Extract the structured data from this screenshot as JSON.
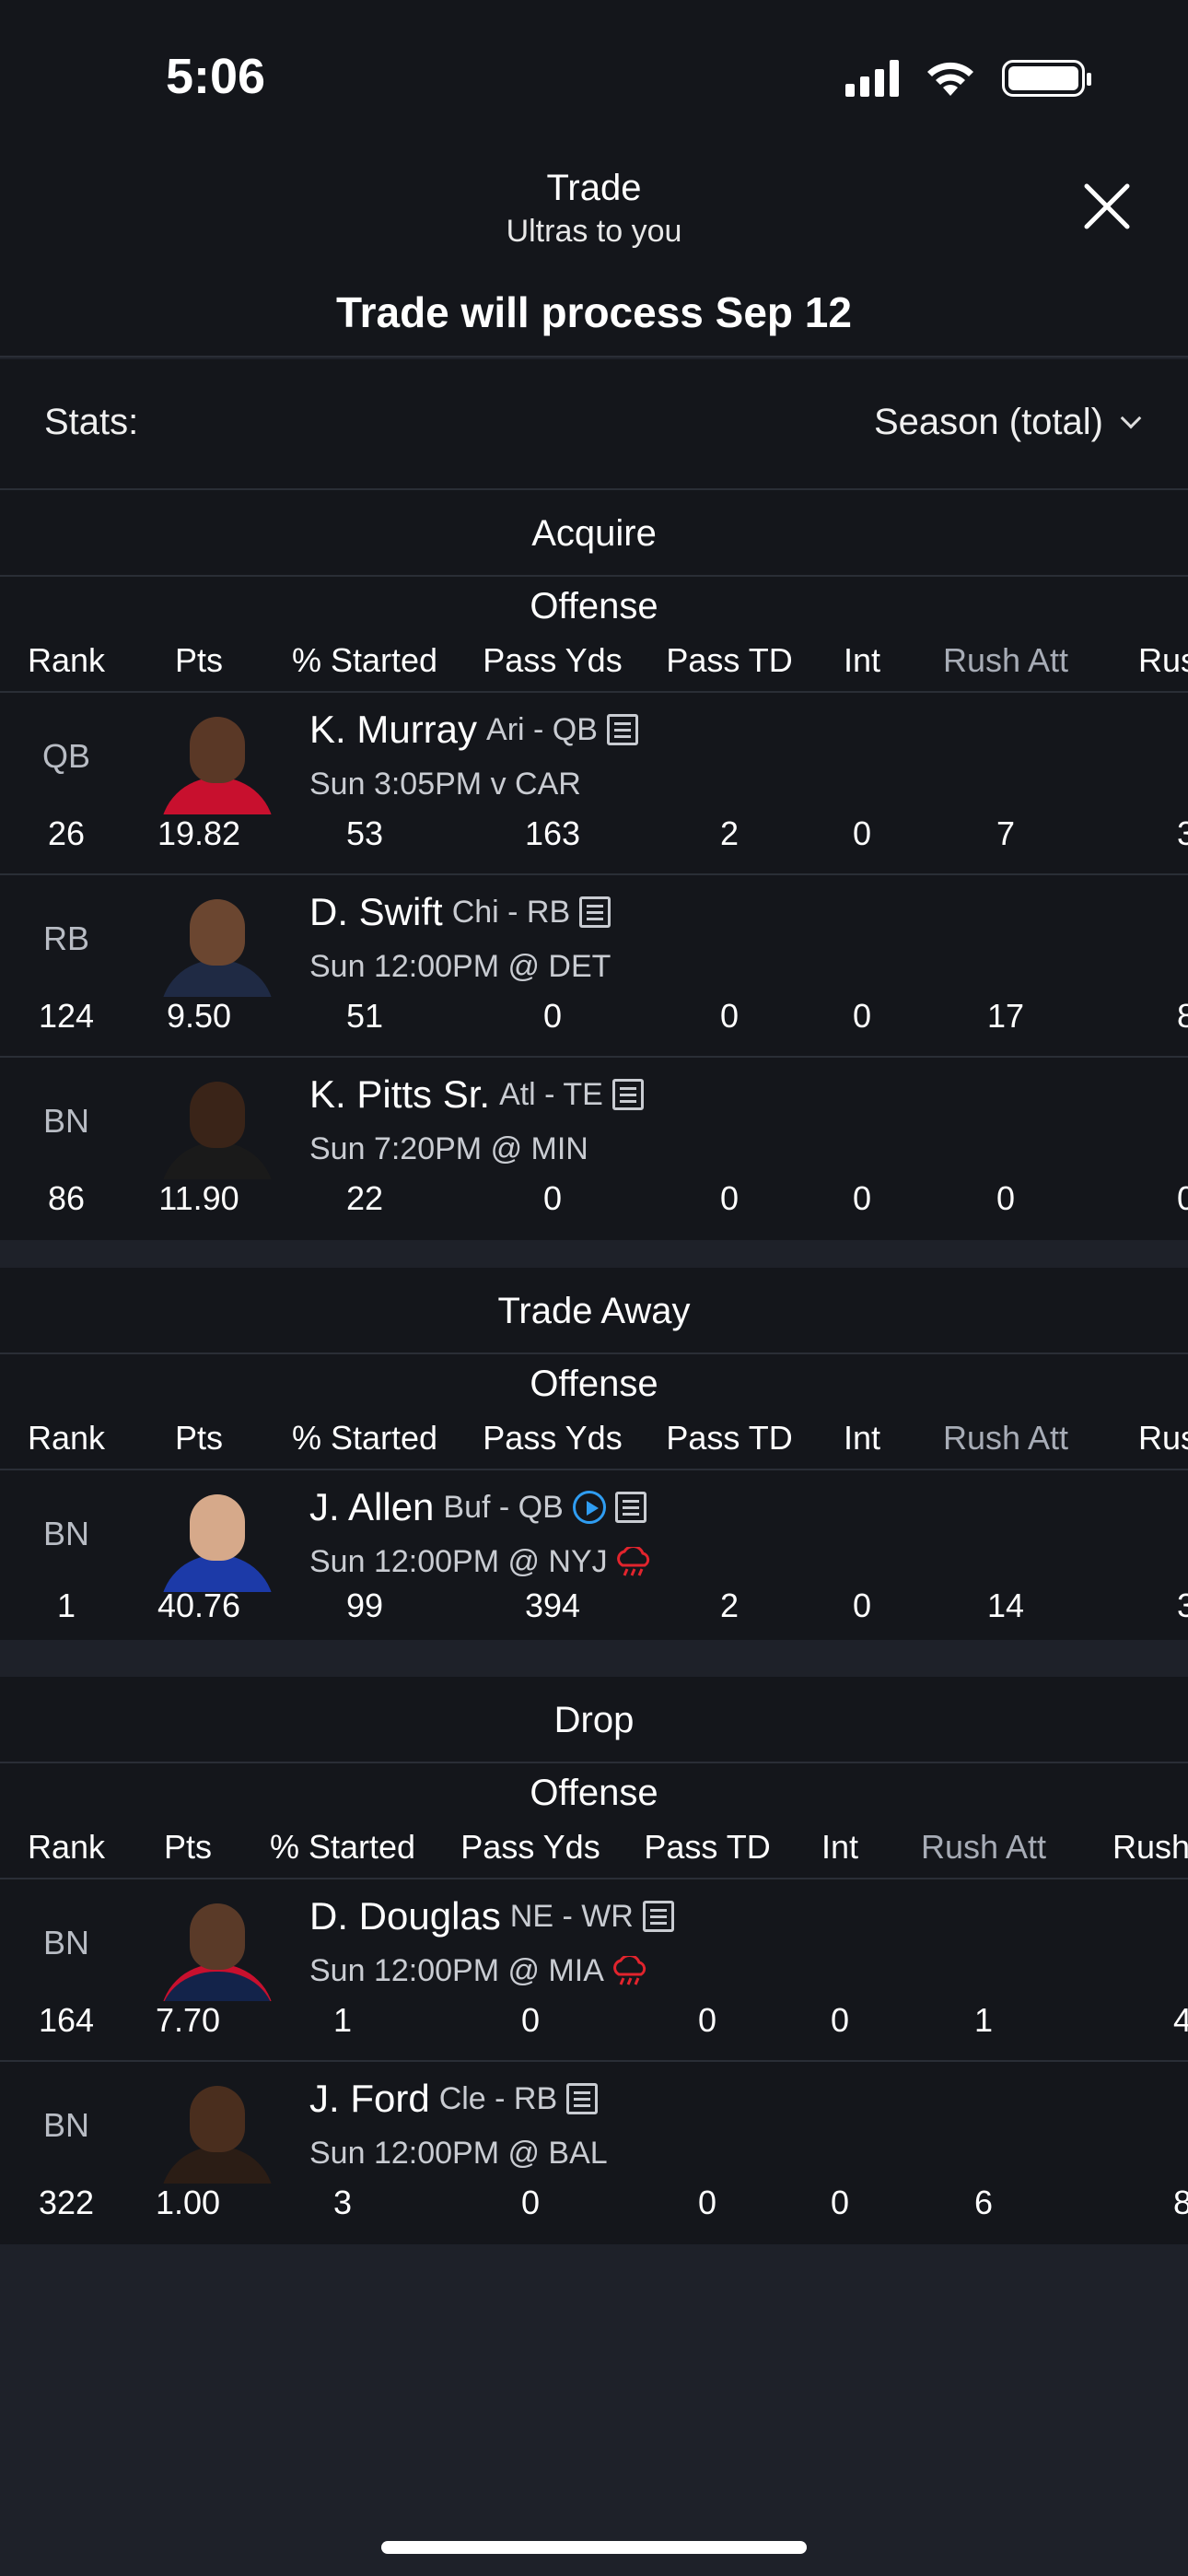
{
  "status": {
    "time": "5:06"
  },
  "header": {
    "title": "Trade",
    "subtitle": "Ultras to you",
    "process": "Trade will process Sep 12"
  },
  "stats": {
    "label": "Stats:",
    "selected": "Season (total)"
  },
  "columns": [
    "Rank",
    "Pts",
    "% Started",
    "Pass Yds",
    "Pass TD",
    "Int",
    "Rush Att",
    "Rus"
  ],
  "columns_drop": [
    "Rank",
    "Pts",
    "% Started",
    "Pass Yds",
    "Pass TD",
    "Int",
    "Rush Att",
    "Rush"
  ],
  "acquire": {
    "title": "Acquire",
    "group": "Offense",
    "players": [
      {
        "pos": "QB",
        "name": "K. Murray",
        "team": "Ari - QB",
        "game": "Sun 3:05PM v CAR",
        "stats": [
          "26",
          "19.82",
          "53",
          "163",
          "2",
          "0",
          "7",
          "3"
        ]
      },
      {
        "pos": "RB",
        "name": "D. Swift",
        "team": "Chi - RB",
        "game": "Sun 12:00PM @ DET",
        "stats": [
          "124",
          "9.50",
          "51",
          "0",
          "0",
          "0",
          "17",
          "8"
        ]
      },
      {
        "pos": "BN",
        "name": "K. Pitts Sr.",
        "team": "Atl - TE",
        "game": "Sun 7:20PM @ MIN",
        "stats": [
          "86",
          "11.90",
          "22",
          "0",
          "0",
          "0",
          "0",
          "0"
        ]
      }
    ]
  },
  "trade_away": {
    "title": "Trade Away",
    "group": "Offense",
    "players": [
      {
        "pos": "BN",
        "name": "J. Allen",
        "team": "Buf - QB",
        "game": "Sun 12:00PM @ NYJ",
        "stats": [
          "1",
          "40.76",
          "99",
          "394",
          "2",
          "0",
          "14",
          "3"
        ]
      }
    ]
  },
  "drop": {
    "title": "Drop",
    "group": "Offense",
    "players": [
      {
        "pos": "BN",
        "name": "D. Douglas",
        "team": "NE - WR",
        "game": "Sun 12:00PM @ MIA",
        "stats": [
          "164",
          "7.70",
          "1",
          "0",
          "0",
          "0",
          "1",
          "4"
        ]
      },
      {
        "pos": "BN",
        "name": "J. Ford",
        "team": "Cle - RB",
        "game": "Sun 12:00PM @ BAL",
        "stats": [
          "322",
          "1.00",
          "3",
          "0",
          "0",
          "0",
          "6",
          "8"
        ]
      }
    ]
  },
  "colors": {
    "background": "#14161b",
    "accent_play": "#2f9df2",
    "weather_red": "#e2242d"
  }
}
